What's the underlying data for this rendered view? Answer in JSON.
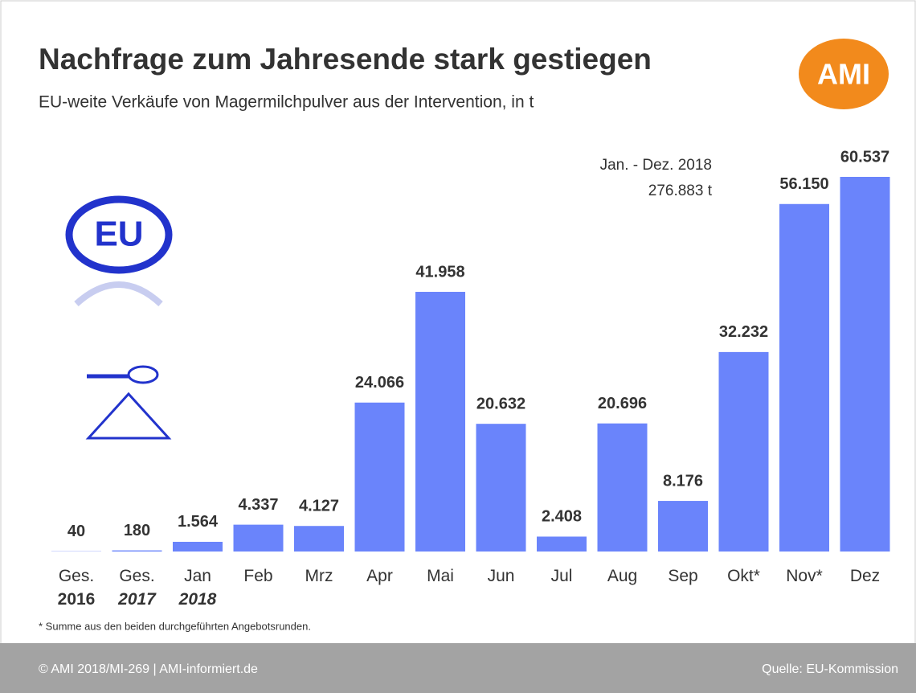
{
  "chart_data": {
    "type": "bar",
    "title": "Nachfrage zum Jahresende stark gestiegen",
    "subtitle": "EU-weite Verkäufe von Magermilchpulver aus der Intervention, in t",
    "logo": "AMI",
    "emblem": "EU",
    "annotation": [
      "Jan. - Dez. 2018",
      "276.883 t"
    ],
    "categories": [
      "Ges.\n2016",
      "Ges.\n2017",
      "Jan\n2018",
      "Feb",
      "Mrz",
      "Apr",
      "Mai",
      "Jun",
      "Jul",
      "Aug",
      "Sep",
      "Okt*",
      "Nov*",
      "Dez"
    ],
    "values": [
      40,
      180,
      1564,
      4337,
      4127,
      24066,
      41958,
      20632,
      2408,
      20696,
      8176,
      32232,
      56150,
      60537
    ],
    "value_labels": [
      "40",
      "180",
      "1.564",
      "4.337",
      "4.127",
      "24.066",
      "41.958",
      "20.632",
      "2.408",
      "20.696",
      "8.176",
      "32.232",
      "56.150",
      "60.537"
    ],
    "color": "#6a84fb",
    "footnote": "* Summe aus den beiden durchgeführten Angebotsrunden.",
    "footer_left": "© AMI 2018/MI-269 | AMI-informiert.de",
    "footer_right": "Quelle: EU-Kommission"
  }
}
